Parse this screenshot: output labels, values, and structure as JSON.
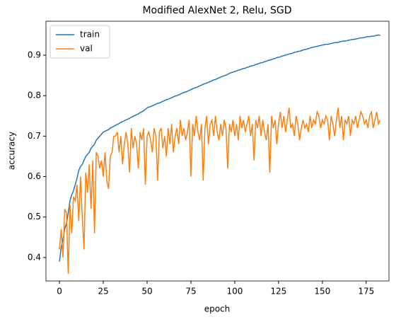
{
  "chart_data": {
    "type": "line",
    "title": "Modified AlexNet 2, Relu, SGD",
    "xlabel": "epoch",
    "ylabel": "accuracy",
    "legend": "upper left",
    "x": [
      0,
      1,
      2,
      3,
      4,
      5,
      6,
      7,
      8,
      9,
      10,
      11,
      12,
      13,
      14,
      15,
      16,
      17,
      18,
      19,
      20,
      21,
      22,
      23,
      24,
      25,
      26,
      27,
      28,
      29,
      30,
      31,
      32,
      33,
      34,
      35,
      36,
      37,
      38,
      39,
      40,
      41,
      42,
      43,
      44,
      45,
      46,
      47,
      48,
      49,
      50,
      51,
      52,
      53,
      54,
      55,
      56,
      57,
      58,
      59,
      60,
      61,
      62,
      63,
      64,
      65,
      66,
      67,
      68,
      69,
      70,
      71,
      72,
      73,
      74,
      75,
      76,
      77,
      78,
      79,
      80,
      81,
      82,
      83,
      84,
      85,
      86,
      87,
      88,
      89,
      90,
      91,
      92,
      93,
      94,
      95,
      96,
      97,
      98,
      99,
      100,
      101,
      102,
      103,
      104,
      105,
      106,
      107,
      108,
      109,
      110,
      111,
      112,
      113,
      114,
      115,
      116,
      117,
      118,
      119,
      120,
      121,
      122,
      123,
      124,
      125,
      126,
      127,
      128,
      129,
      130,
      131,
      132,
      133,
      134,
      135,
      136,
      137,
      138,
      139,
      140,
      141,
      142,
      143,
      144,
      145,
      146,
      147,
      148,
      149,
      150,
      151,
      152,
      153,
      154,
      155,
      156,
      157,
      158,
      159,
      160,
      161,
      162,
      163,
      164,
      165,
      166,
      167,
      168,
      169,
      170,
      171,
      172,
      173,
      174,
      175,
      176,
      177,
      178,
      179,
      180,
      181,
      182,
      183
    ],
    "series": [
      {
        "name": "train",
        "color": "#1f77b4",
        "values": [
          0.39,
          0.425,
          0.445,
          0.47,
          0.485,
          0.51,
          0.54,
          0.555,
          0.565,
          0.58,
          0.595,
          0.615,
          0.625,
          0.63,
          0.64,
          0.65,
          0.655,
          0.66,
          0.67,
          0.675,
          0.68,
          0.69,
          0.695,
          0.7,
          0.705,
          0.71,
          0.712,
          0.714,
          0.716,
          0.72,
          0.722,
          0.724,
          0.727,
          0.729,
          0.731,
          0.734,
          0.736,
          0.738,
          0.74,
          0.742,
          0.744,
          0.747,
          0.749,
          0.751,
          0.753,
          0.755,
          0.758,
          0.76,
          0.763,
          0.766,
          0.77,
          0.772,
          0.773,
          0.775,
          0.777,
          0.779,
          0.781,
          0.782,
          0.784,
          0.786,
          0.788,
          0.79,
          0.791,
          0.793,
          0.795,
          0.797,
          0.799,
          0.8,
          0.802,
          0.804,
          0.806,
          0.808,
          0.809,
          0.811,
          0.813,
          0.815,
          0.817,
          0.819,
          0.82,
          0.822,
          0.824,
          0.826,
          0.828,
          0.83,
          0.831,
          0.833,
          0.835,
          0.837,
          0.839,
          0.84,
          0.842,
          0.844,
          0.846,
          0.848,
          0.849,
          0.851,
          0.853,
          0.855,
          0.857,
          0.858,
          0.86,
          0.861,
          0.863,
          0.864,
          0.866,
          0.867,
          0.868,
          0.87,
          0.871,
          0.873,
          0.874,
          0.875,
          0.877,
          0.878,
          0.88,
          0.881,
          0.882,
          0.884,
          0.885,
          0.887,
          0.888,
          0.889,
          0.891,
          0.892,
          0.894,
          0.895,
          0.896,
          0.898,
          0.899,
          0.9,
          0.902,
          0.903,
          0.904,
          0.905,
          0.907,
          0.908,
          0.909,
          0.91,
          0.911,
          0.913,
          0.914,
          0.915,
          0.916,
          0.918,
          0.919,
          0.92,
          0.921,
          0.922,
          0.923,
          0.924,
          0.925,
          0.926,
          0.927,
          0.927,
          0.928,
          0.929,
          0.93,
          0.931,
          0.931,
          0.932,
          0.933,
          0.934,
          0.935,
          0.935,
          0.936,
          0.937,
          0.938,
          0.939,
          0.939,
          0.94,
          0.941,
          0.942,
          0.943,
          0.943,
          0.944,
          0.945,
          0.946,
          0.946,
          0.947,
          0.947,
          0.948,
          0.949,
          0.95,
          0.949
        ]
      },
      {
        "name": "val",
        "color": "#ff7f0e",
        "values": [
          0.42,
          0.47,
          0.4,
          0.52,
          0.51,
          0.36,
          0.53,
          0.46,
          0.55,
          0.54,
          0.58,
          0.49,
          0.6,
          0.5,
          0.42,
          0.61,
          0.56,
          0.63,
          0.52,
          0.64,
          0.46,
          0.66,
          0.65,
          0.62,
          0.64,
          0.6,
          0.66,
          0.59,
          0.57,
          0.65,
          0.66,
          0.7,
          0.7,
          0.71,
          0.66,
          0.7,
          0.63,
          0.68,
          0.71,
          0.68,
          0.61,
          0.72,
          0.67,
          0.7,
          0.68,
          0.62,
          0.71,
          0.69,
          0.72,
          0.58,
          0.7,
          0.71,
          0.69,
          0.66,
          0.72,
          0.7,
          0.59,
          0.71,
          0.72,
          0.67,
          0.7,
          0.65,
          0.72,
          0.68,
          0.73,
          0.66,
          0.7,
          0.72,
          0.68,
          0.74,
          0.7,
          0.72,
          0.69,
          0.71,
          0.74,
          0.6,
          0.73,
          0.7,
          0.75,
          0.71,
          0.69,
          0.73,
          0.59,
          0.72,
          0.75,
          0.68,
          0.73,
          0.74,
          0.7,
          0.75,
          0.71,
          0.69,
          0.73,
          0.7,
          0.74,
          0.72,
          0.62,
          0.73,
          0.71,
          0.74,
          0.7,
          0.73,
          0.69,
          0.75,
          0.72,
          0.74,
          0.71,
          0.73,
          0.75,
          0.7,
          0.73,
          0.64,
          0.74,
          0.72,
          0.75,
          0.7,
          0.74,
          0.71,
          0.69,
          0.73,
          0.61,
          0.75,
          0.72,
          0.74,
          0.68,
          0.73,
          0.76,
          0.72,
          0.75,
          0.71,
          0.74,
          0.77,
          0.72,
          0.73,
          0.7,
          0.75,
          0.73,
          0.69,
          0.72,
          0.74,
          0.72,
          0.73,
          0.71,
          0.75,
          0.72,
          0.74,
          0.73,
          0.76,
          0.75,
          0.72,
          0.74,
          0.73,
          0.75,
          0.74,
          0.69,
          0.75,
          0.73,
          0.7,
          0.74,
          0.77,
          0.72,
          0.75,
          0.69,
          0.74,
          0.73,
          0.75,
          0.7,
          0.74,
          0.73,
          0.75,
          0.72,
          0.74,
          0.76,
          0.75,
          0.73,
          0.74,
          0.72,
          0.75,
          0.76,
          0.72,
          0.74,
          0.76,
          0.73,
          0.74
        ]
      }
    ],
    "xlim": [
      -7.7,
      188.0
    ],
    "xticks": [
      0,
      25,
      50,
      75,
      100,
      125,
      150,
      175
    ],
    "ylim": [
      0.342,
      0.984
    ],
    "yticks": [
      0.4,
      0.5,
      0.6,
      0.7,
      0.8,
      0.9
    ]
  }
}
